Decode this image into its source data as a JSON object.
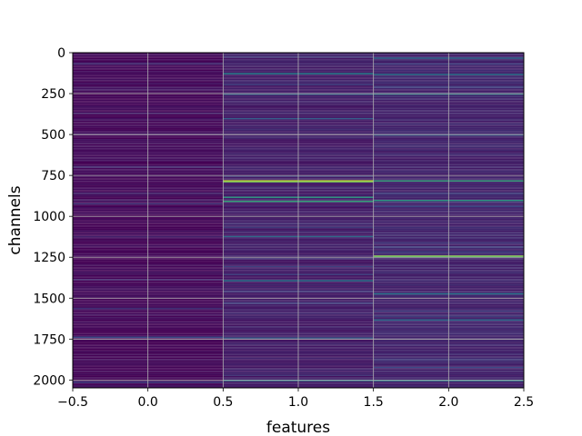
{
  "chart_data": {
    "type": "heatmap",
    "title": "",
    "xlabel": "features",
    "ylabel": "channels",
    "x_ticks": [
      "−0.5",
      "0.0",
      "0.5",
      "1.0",
      "1.5",
      "2.0",
      "2.5"
    ],
    "x_tick_values": [
      -0.5,
      0.0,
      0.5,
      1.0,
      1.5,
      2.0,
      2.5
    ],
    "y_ticks": [
      "0",
      "250",
      "500",
      "750",
      "1000",
      "1250",
      "1500",
      "1750",
      "2000"
    ],
    "y_tick_values": [
      0,
      250,
      500,
      750,
      1000,
      1250,
      1500,
      1750,
      2000
    ],
    "xlim": [
      -0.5,
      2.5
    ],
    "ylim": [
      2048,
      0
    ],
    "grid": true,
    "colormap": "viridis",
    "columns": [
      0,
      1,
      2
    ],
    "rows": 2048,
    "background_levels": [
      0.02,
      0.08,
      0.1
    ],
    "highlights": [
      {
        "column": 1,
        "channel": 780,
        "level": 0.95
      },
      {
        "column": 1,
        "channel": 785,
        "level": 0.8
      },
      {
        "column": 1,
        "channel": 880,
        "level": 0.55
      },
      {
        "column": 1,
        "channel": 905,
        "level": 0.6
      },
      {
        "column": 1,
        "channel": 125,
        "level": 0.45
      },
      {
        "column": 1,
        "channel": 250,
        "level": 0.35
      },
      {
        "column": 1,
        "channel": 400,
        "level": 0.3
      },
      {
        "column": 1,
        "channel": 1120,
        "level": 0.35
      },
      {
        "column": 1,
        "channel": 1390,
        "level": 0.4
      },
      {
        "column": 1,
        "channel": 1740,
        "level": 0.3
      },
      {
        "column": 1,
        "channel": 2000,
        "level": 0.4
      },
      {
        "column": 2,
        "channel": 30,
        "level": 0.35
      },
      {
        "column": 2,
        "channel": 130,
        "level": 0.4
      },
      {
        "column": 2,
        "channel": 250,
        "level": 0.45
      },
      {
        "column": 2,
        "channel": 500,
        "level": 0.3
      },
      {
        "column": 2,
        "channel": 780,
        "level": 0.6
      },
      {
        "column": 2,
        "channel": 900,
        "level": 0.55
      },
      {
        "column": 2,
        "channel": 1240,
        "level": 0.85
      },
      {
        "column": 2,
        "channel": 1245,
        "level": 0.7
      },
      {
        "column": 2,
        "channel": 1470,
        "level": 0.4
      },
      {
        "column": 2,
        "channel": 1630,
        "level": 0.35
      },
      {
        "column": 2,
        "channel": 2000,
        "level": 0.45
      },
      {
        "column": 0,
        "channel": 1735,
        "level": 0.25
      },
      {
        "column": 0,
        "channel": 2010,
        "level": 0.2
      }
    ]
  }
}
